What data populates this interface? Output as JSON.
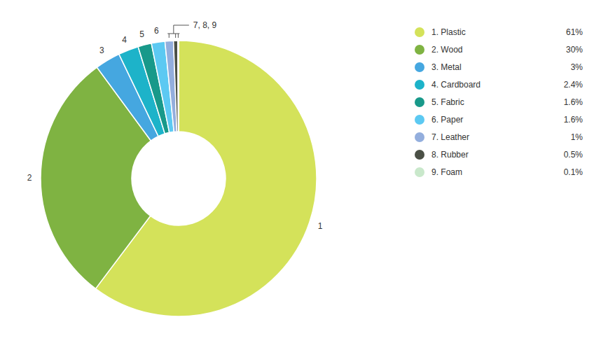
{
  "chart_data": {
    "type": "pie",
    "categories": [
      "1. Plastic",
      "2. Wood",
      "3. Metal",
      "4. Cardboard",
      "5. Fabric",
      "6. Paper",
      "7. Leather",
      "8. Rubber",
      "9. Foam"
    ],
    "values": [
      61,
      30,
      3,
      2.4,
      1.6,
      1.6,
      1,
      0.5,
      0.1
    ],
    "value_labels": [
      "61%",
      "30%",
      "3%",
      "2.4%",
      "1.6%",
      "1.6%",
      "1%",
      "0.5%",
      "0.1%"
    ],
    "colors": [
      "#d4e25a",
      "#7fb342",
      "#45a7e0",
      "#1db3c9",
      "#18998a",
      "#5cc9f2",
      "#93aedd",
      "#4b5046",
      "#c9e8cb"
    ],
    "slice_labels": [
      "1",
      "2",
      "3",
      "4",
      "5",
      "6",
      null,
      null,
      null
    ],
    "annotation": "7, 8, 9",
    "legend": "right"
  }
}
